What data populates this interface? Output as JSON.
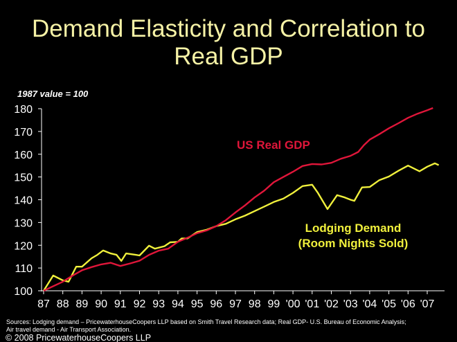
{
  "chart_data": {
    "type": "line",
    "title": "Demand Elasticity and Correlation to Real GDP",
    "title_lines": [
      "Demand Elasticity and Correlation to",
      "Real GDP"
    ],
    "ylabel_note": "1987 value = 100",
    "ylim": [
      100,
      180
    ],
    "yticks": [
      100,
      110,
      120,
      130,
      140,
      150,
      160,
      170,
      180
    ],
    "xlim": [
      1987,
      2007.8
    ],
    "xticks": [
      {
        "year": 1987,
        "label": "87"
      },
      {
        "year": 1988,
        "label": "88"
      },
      {
        "year": 1989,
        "label": "89"
      },
      {
        "year": 1990,
        "label": "90"
      },
      {
        "year": 1991,
        "label": "91"
      },
      {
        "year": 1992,
        "label": "92"
      },
      {
        "year": 1993,
        "label": "93"
      },
      {
        "year": 1994,
        "label": "94"
      },
      {
        "year": 1995,
        "label": "95"
      },
      {
        "year": 1996,
        "label": "96"
      },
      {
        "year": 1997,
        "label": "97"
      },
      {
        "year": 1998,
        "label": "98"
      },
      {
        "year": 1999,
        "label": "99"
      },
      {
        "year": 2000,
        "label": "'00"
      },
      {
        "year": 2001,
        "label": "'01"
      },
      {
        "year": 2002,
        "label": "'02"
      },
      {
        "year": 2003,
        "label": "'03"
      },
      {
        "year": 2004,
        "label": "'04"
      },
      {
        "year": 2005,
        "label": "'05"
      },
      {
        "year": 2006,
        "label": "'06"
      },
      {
        "year": 2007,
        "label": "'07"
      }
    ],
    "grid": false,
    "series": [
      {
        "name": "US Real GDP",
        "color": "#e0163a",
        "x": [
          1987,
          1987.5,
          1988,
          1988.5,
          1989,
          1989.5,
          1990,
          1990.5,
          1991,
          1991.5,
          1992,
          1992.5,
          1993,
          1993.5,
          1994,
          1994.5,
          1995,
          1995.5,
          1996,
          1996.5,
          1997,
          1997.5,
          1998,
          1998.5,
          1999,
          1999.5,
          2000,
          2000.5,
          2001,
          2001.5,
          2002,
          2002.5,
          2003,
          2003.4,
          2003.7,
          2004,
          2004.5,
          2005,
          2005.5,
          2006,
          2006.5,
          2007,
          2007.3
        ],
        "values": [
          100,
          102,
          104,
          106.6,
          109,
          110.4,
          111.6,
          112.3,
          110.9,
          112,
          113.2,
          115.8,
          117.6,
          118.5,
          121.5,
          123.3,
          125.3,
          126.5,
          128.4,
          131,
          134.4,
          137.5,
          141,
          144,
          147.7,
          150,
          152.3,
          154.8,
          155.7,
          155.5,
          156.2,
          158,
          159.3,
          161,
          164,
          166.4,
          168.8,
          171.4,
          173.6,
          176,
          177.8,
          179.3,
          180.3
        ]
      },
      {
        "name": "Lodging Demand (Room Nights Sold)",
        "label_lines": [
          "Lodging Demand",
          "(Room Nights Sold)"
        ],
        "color": "#f0f03c",
        "x": [
          1987,
          1987.5,
          1988,
          1988.3,
          1988.7,
          1989,
          1989.5,
          1989.8,
          1990.1,
          1990.5,
          1990.8,
          1991.05,
          1991.3,
          1991.8,
          1992,
          1992.5,
          1992.8,
          1993.3,
          1993.6,
          1994,
          1994.2,
          1994.5,
          1995,
          1995.5,
          1996,
          1996.5,
          1997,
          1997.5,
          1998,
          1998.5,
          1999,
          1999.5,
          2000,
          2000.5,
          2001,
          2001.3,
          2001.8,
          2002.3,
          2002.7,
          2003,
          2003.2,
          2003.6,
          2004,
          2004.5,
          2005,
          2005.5,
          2006,
          2006.6,
          2007,
          2007.4,
          2007.6
        ],
        "values": [
          100,
          106.7,
          104.6,
          104,
          110.6,
          110.6,
          114.3,
          115.8,
          117.7,
          116.4,
          115.8,
          113.1,
          116.4,
          115.8,
          115.5,
          119.8,
          118.5,
          119.6,
          121.3,
          121.5,
          123,
          123,
          125.8,
          126.8,
          128.4,
          129.4,
          131.4,
          133,
          135,
          137,
          139,
          140.5,
          143,
          146,
          146.6,
          143,
          135.9,
          142,
          141,
          140,
          139.5,
          145.4,
          145.6,
          148.6,
          150.2,
          152.7,
          155,
          152.5,
          154.5,
          156,
          155.2
        ]
      }
    ]
  },
  "footer": {
    "sources_line1": "Sources: Lodging demand – PricewaterhouseCoopers LLP based on Smith Travel Research data; Real GDP- U.S. Bureau of Economic Analysis;",
    "sources_line2": "Air travel demand - Air Transport Association.",
    "copyright": "© 2008 PricewaterhouseCoopers LLP"
  }
}
